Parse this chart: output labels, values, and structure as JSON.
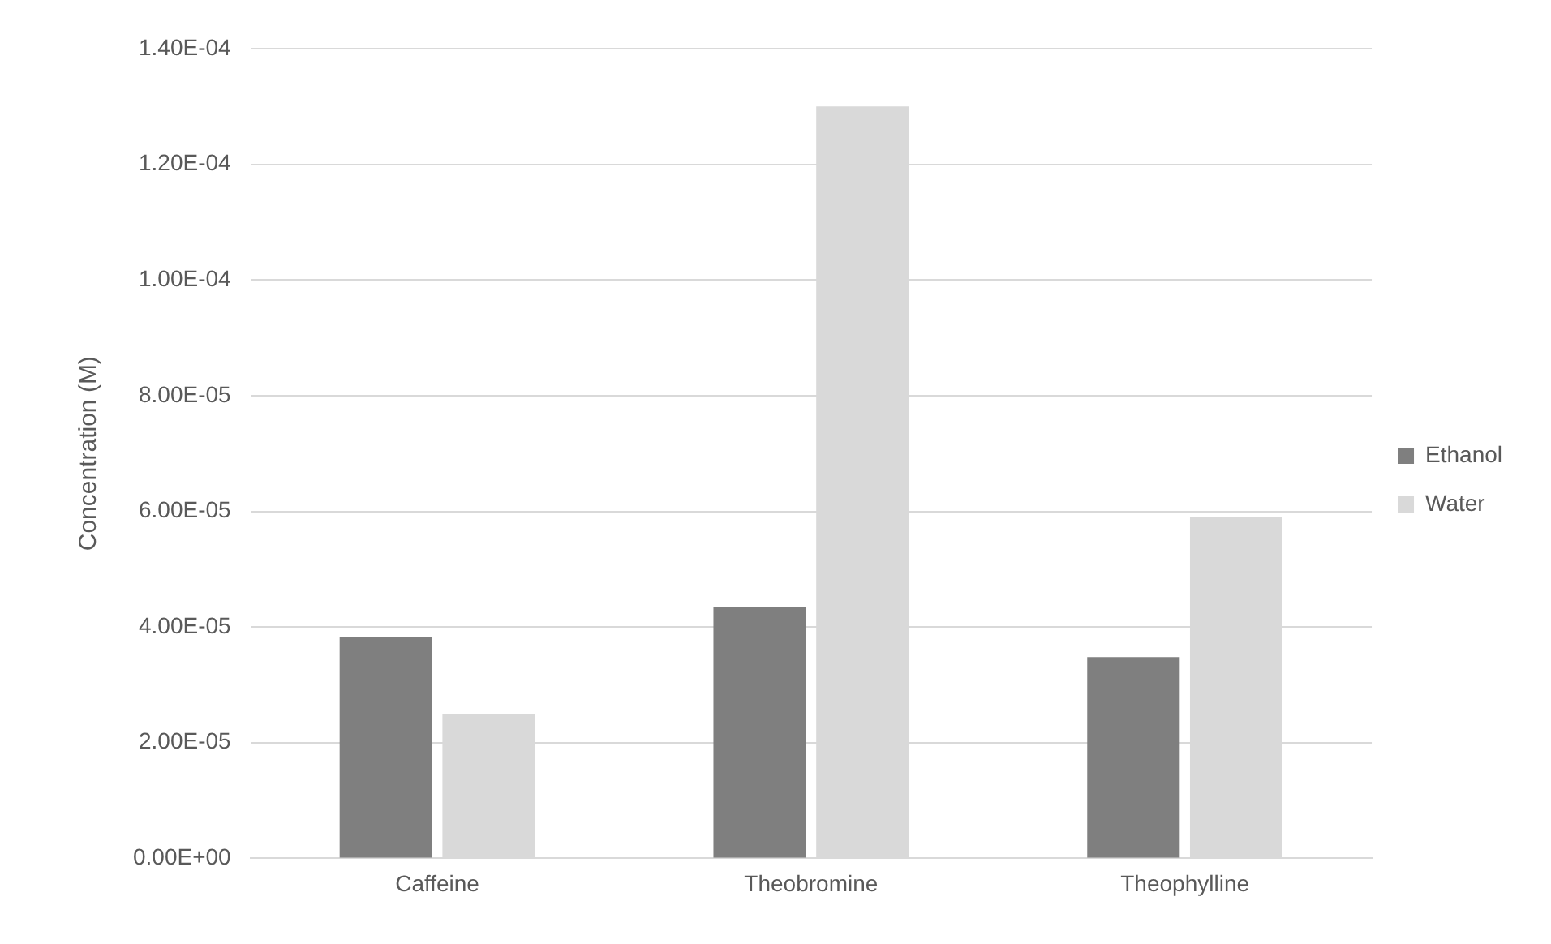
{
  "chart_data": {
    "type": "bar",
    "ylabel": "Concentration (M)",
    "categories": [
      "Caffeine",
      "Theobromine",
      "Theophylline"
    ],
    "series": [
      {
        "name": "Ethanol",
        "color": "#7f7f7f",
        "values": [
          3.83e-05,
          4.35e-05,
          3.48e-05
        ]
      },
      {
        "name": "Water",
        "color": "#d9d9d9",
        "values": [
          2.49e-05,
          0.00013,
          5.91e-05
        ]
      }
    ],
    "ylim": [
      0,
      0.00014
    ],
    "yticks": [
      {
        "value": 0,
        "label": "0.00E+00"
      },
      {
        "value": 2e-05,
        "label": "2.00E-05"
      },
      {
        "value": 4e-05,
        "label": "4.00E-05"
      },
      {
        "value": 6e-05,
        "label": "6.00E-05"
      },
      {
        "value": 8e-05,
        "label": "8.00E-05"
      },
      {
        "value": 0.0001,
        "label": "1.00E-04"
      },
      {
        "value": 0.00012,
        "label": "1.20E-04"
      },
      {
        "value": 0.00014,
        "label": "1.40E-04"
      }
    ],
    "grid": "y",
    "legend": "right"
  }
}
